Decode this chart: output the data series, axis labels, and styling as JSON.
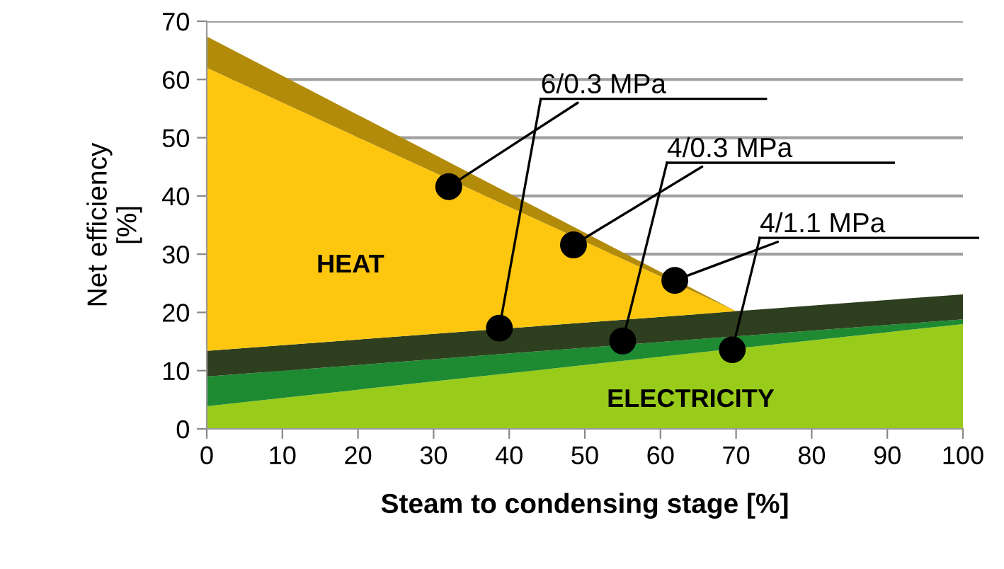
{
  "chart_data": {
    "type": "area",
    "stacked": true,
    "xlabel": "Steam to condensing stage [%]",
    "ylabel": "Net efficiency\n[%]",
    "x": [
      0,
      70,
      100
    ],
    "xlim": [
      0,
      100
    ],
    "xticks": [
      0,
      10,
      20,
      30,
      40,
      50,
      60,
      70,
      80,
      90,
      100
    ],
    "ylim": [
      0,
      70
    ],
    "yticks": [
      0,
      10,
      20,
      30,
      40,
      50,
      60,
      70
    ],
    "grid": "y",
    "series": [
      {
        "color": "#99cc1a",
        "values": [
          3.9,
          13.8,
          18
        ]
      },
      {
        "color": "#1e8a32",
        "values": [
          5.1,
          2.1,
          0.8
        ]
      },
      {
        "color": "#2d3f1e",
        "values": [
          4.4,
          4.3,
          4.3
        ]
      },
      {
        "color": "#fec70f",
        "values": [
          48.6,
          0,
          0
        ]
      },
      {
        "color": "#b38b0a",
        "values": [
          5.4,
          0,
          0
        ]
      },
      {
        "type": "scatter",
        "color": "#000000",
        "marker": "circle",
        "x": [
          32,
          38.7,
          48.5,
          55,
          61.9,
          69.5
        ],
        "values": [
          41.6,
          17.3,
          31.6,
          15.1,
          25.5,
          13.6
        ]
      }
    ],
    "annotations": [
      {
        "text": "6/0.3 MPa",
        "x": 32,
        "y": 41.6
      },
      {
        "text": "4/0.3 MPa",
        "x": 48.5,
        "y": 31.6
      },
      {
        "text": "4/1.1 MPa",
        "x": 61.9,
        "y": 25.5
      },
      "HEAT",
      "ELECTRICITY"
    ]
  }
}
